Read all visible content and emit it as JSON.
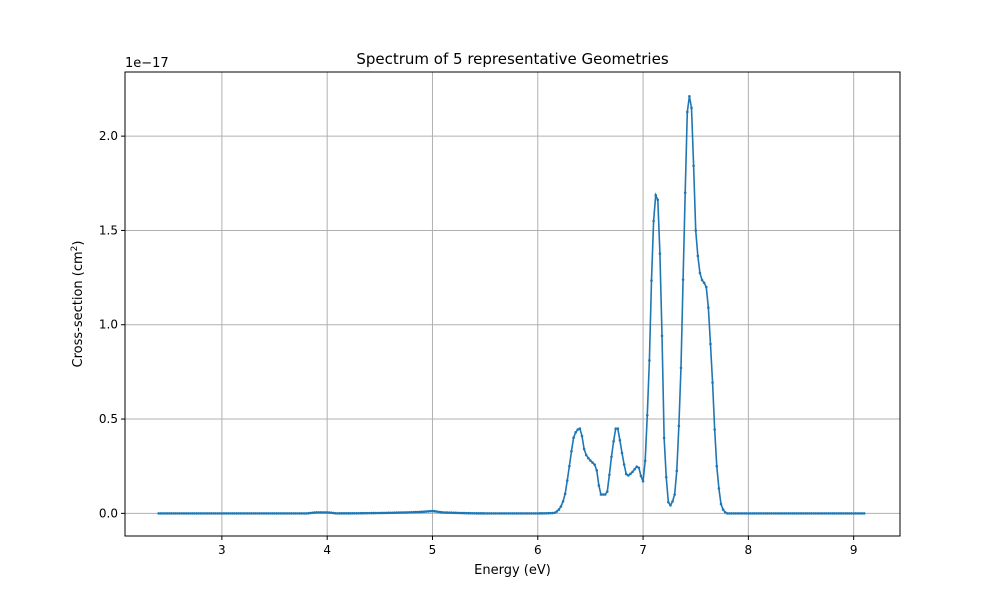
{
  "chart_data": {
    "type": "line",
    "title": "Spectrum of 5 representative Geometries",
    "xlabel": "Energy (eV)",
    "ylabel_main": "Cross-section (cm",
    "ylabel_sup": "2",
    "ylabel_close": ")",
    "offset_text": "1e−17",
    "xlim": [
      2.08,
      9.44
    ],
    "ylim": [
      -0.12,
      2.34
    ],
    "y_scale_note": "values in units of 1e-17 cm^2",
    "xticks": [
      3,
      4,
      5,
      6,
      7,
      8,
      9
    ],
    "xtick_labels": [
      "3",
      "4",
      "5",
      "6",
      "7",
      "8",
      "9"
    ],
    "yticks": [
      0.0,
      0.5,
      1.0,
      1.5,
      2.0
    ],
    "ytick_labels": [
      "0.0",
      "0.5",
      "1.0",
      "1.5",
      "2.0"
    ],
    "grid": true,
    "legend": "none",
    "color": "#1f77b4",
    "marker": "small dots",
    "x_range": [
      2.4,
      9.1
    ],
    "series": [
      {
        "x": [
          2.4,
          3.0,
          3.5,
          3.8,
          3.9,
          4.0,
          4.1,
          4.5,
          4.9,
          5.0,
          5.1,
          5.5,
          6.0,
          6.15,
          6.2,
          6.25,
          6.3,
          6.35,
          6.4,
          6.45,
          6.5,
          6.55,
          6.6,
          6.65,
          6.7,
          6.75,
          6.8,
          6.85,
          6.9,
          6.95,
          7.0,
          7.05,
          7.1,
          7.13,
          7.17,
          7.2,
          7.25,
          7.3,
          7.35,
          7.4,
          7.43,
          7.46,
          7.5,
          7.55,
          7.6,
          7.65,
          7.7,
          7.75,
          7.8,
          8.0,
          8.5,
          9.1
        ],
        "y": [
          0.0,
          0.0,
          0.0,
          0.0,
          0.005,
          0.005,
          0.0,
          0.002,
          0.008,
          0.012,
          0.005,
          0.0,
          0.0,
          0.002,
          0.02,
          0.08,
          0.25,
          0.42,
          0.45,
          0.32,
          0.28,
          0.25,
          0.1,
          0.1,
          0.3,
          0.46,
          0.32,
          0.2,
          0.22,
          0.25,
          0.17,
          0.65,
          1.55,
          1.71,
          1.2,
          0.4,
          0.04,
          0.1,
          0.6,
          1.7,
          2.22,
          2.15,
          1.5,
          1.25,
          1.2,
          0.8,
          0.25,
          0.03,
          0.0,
          0.0,
          0.0,
          0.0
        ]
      }
    ]
  }
}
